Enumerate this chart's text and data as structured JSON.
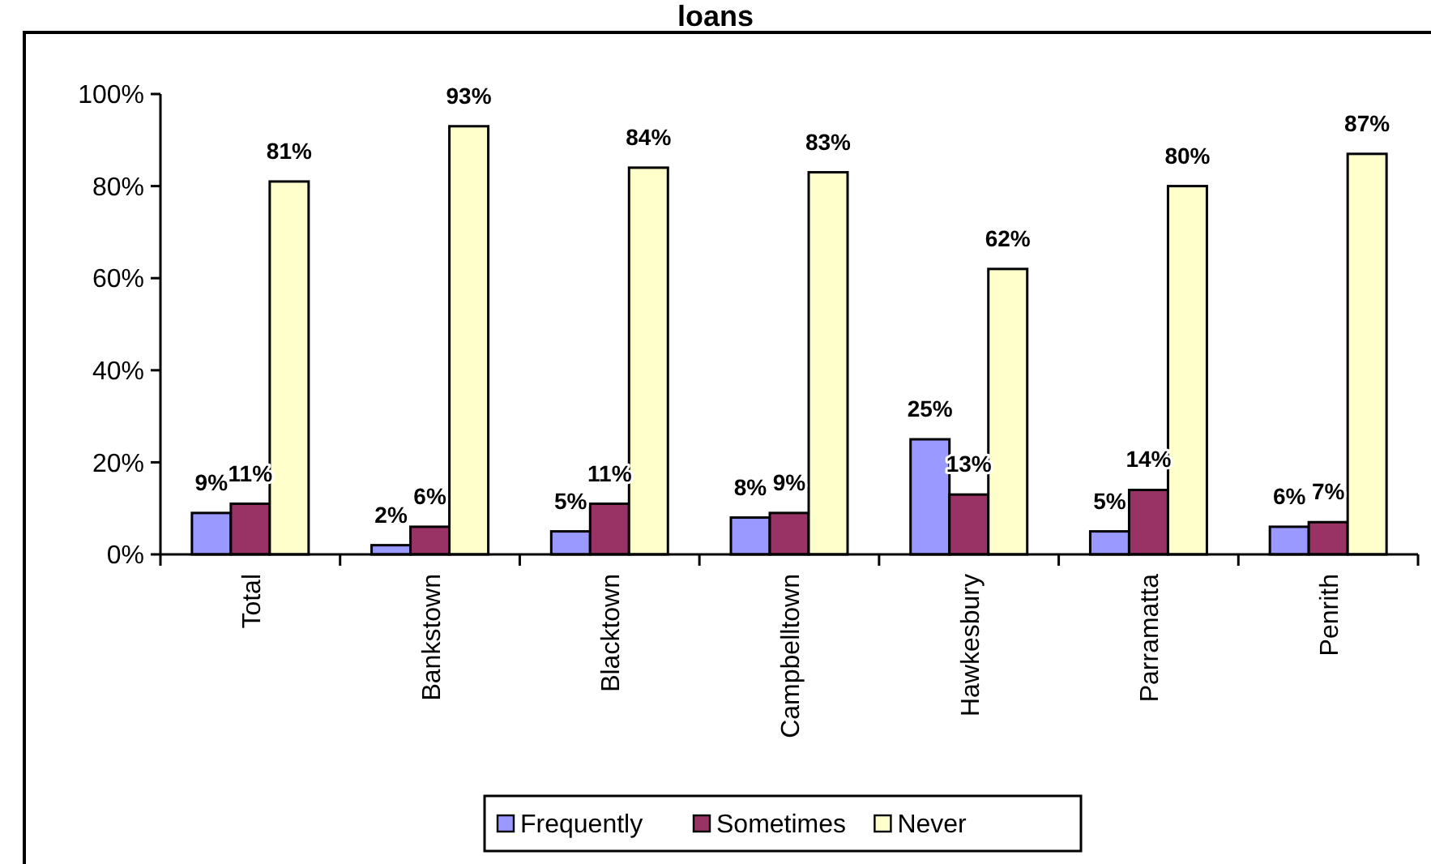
{
  "chart_data": {
    "type": "bar",
    "title": "loans",
    "categories": [
      "Total",
      "Bankstown",
      "Blacktown",
      "Campbelltown",
      "Hawkesbury",
      "Parramatta",
      "Penrith"
    ],
    "series": [
      {
        "name": "Frequently",
        "color": "#9999ff",
        "values": [
          9,
          2,
          5,
          8,
          25,
          5,
          6
        ],
        "value_labels": [
          "9%",
          "2%",
          "5%",
          "8%",
          "25%",
          "5%",
          "6%"
        ]
      },
      {
        "name": "Sometimes",
        "color": "#993366",
        "values": [
          11,
          6,
          11,
          9,
          13,
          14,
          7
        ],
        "value_labels": [
          "11%",
          "6%",
          "11%",
          "9%",
          "13%",
          "14%",
          "7%"
        ]
      },
      {
        "name": "Never",
        "color": "#ffffcc",
        "values": [
          81,
          93,
          84,
          83,
          62,
          80,
          87
        ],
        "value_labels": [
          "81%",
          "93%",
          "84%",
          "83%",
          "62%",
          "80%",
          "87%"
        ]
      }
    ],
    "ylim": [
      0,
      100
    ],
    "yticks": [
      {
        "value": 0,
        "label": "0%"
      },
      {
        "value": 20,
        "label": "20%"
      },
      {
        "value": 40,
        "label": "40%"
      },
      {
        "value": 60,
        "label": "60%"
      },
      {
        "value": 80,
        "label": "80%"
      },
      {
        "value": 100,
        "label": "100%"
      }
    ],
    "legend": "bottom",
    "grid": false
  }
}
